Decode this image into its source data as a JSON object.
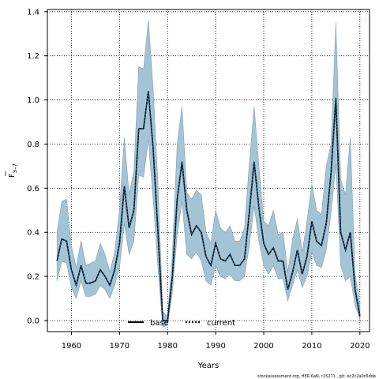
{
  "chart_data": {
    "type": "line",
    "xlabel": "Years",
    "ylabel_main": "F",
    "ylabel_sub": "3–7",
    "xlim": [
      1955,
      2022
    ],
    "ylim": [
      -0.05,
      1.41
    ],
    "x_ticks": [
      1960,
      1970,
      1980,
      1990,
      2000,
      2010,
      2020
    ],
    "y_ticks": [
      0.0,
      0.2,
      0.4,
      0.6,
      0.8,
      1.0,
      1.2,
      1.4
    ],
    "x_tick_labels": [
      "1960",
      "1970",
      "1980",
      "1990",
      "2000",
      "2010",
      "2020"
    ],
    "y_tick_labels": [
      "0.0",
      "0.2",
      "0.4",
      "0.6",
      "0.8",
      "1.0",
      "1.2",
      "1.4"
    ],
    "grid": true,
    "legend_position": "bottom-center",
    "colors": {
      "band_fill": "#a3c4d5",
      "band_stroke": "#7f9fb0",
      "line": "#000000",
      "current_line": "#1f4e79"
    },
    "x": [
      1957,
      1958,
      1959,
      1960,
      1961,
      1962,
      1963,
      1964,
      1965,
      1966,
      1967,
      1968,
      1969,
      1970,
      1971,
      1972,
      1973,
      1974,
      1975,
      1976,
      1977,
      1978,
      1979,
      1980,
      1981,
      1982,
      1983,
      1984,
      1985,
      1986,
      1987,
      1988,
      1989,
      1990,
      1991,
      1992,
      1993,
      1994,
      1995,
      1996,
      1997,
      1998,
      1999,
      2000,
      2001,
      2002,
      2003,
      2004,
      2005,
      2006,
      2007,
      2008,
      2009,
      2010,
      2011,
      2012,
      2013,
      2014,
      2015,
      2016,
      2017,
      2018,
      2019,
      2020
    ],
    "series": [
      {
        "name": "base",
        "style": "solid",
        "values": [
          0.27,
          0.37,
          0.36,
          0.23,
          0.16,
          0.25,
          0.17,
          0.17,
          0.18,
          0.23,
          0.2,
          0.16,
          0.23,
          0.35,
          0.61,
          0.42,
          0.5,
          0.87,
          0.87,
          1.04,
          0.78,
          0.4,
          0.0,
          0.0,
          0.2,
          0.55,
          0.72,
          0.5,
          0.39,
          0.43,
          0.4,
          0.29,
          0.25,
          0.35,
          0.28,
          0.27,
          0.3,
          0.25,
          0.25,
          0.28,
          0.49,
          0.72,
          0.51,
          0.35,
          0.3,
          0.33,
          0.27,
          0.27,
          0.14,
          0.22,
          0.32,
          0.21,
          0.29,
          0.45,
          0.36,
          0.34,
          0.44,
          0.67,
          1.01,
          0.4,
          0.32,
          0.4,
          0.14,
          0.02
        ]
      },
      {
        "name": "current",
        "style": "dotted",
        "values": [
          0.27,
          0.37,
          0.36,
          0.23,
          0.16,
          0.25,
          0.17,
          0.17,
          0.18,
          0.23,
          0.2,
          0.16,
          0.23,
          0.35,
          0.61,
          0.42,
          0.5,
          0.87,
          0.87,
          1.04,
          0.78,
          0.4,
          0.0,
          0.0,
          0.2,
          0.55,
          0.72,
          0.5,
          0.39,
          0.43,
          0.4,
          0.29,
          0.25,
          0.35,
          0.28,
          0.27,
          0.3,
          0.25,
          0.25,
          0.28,
          0.49,
          0.72,
          0.51,
          0.35,
          0.3,
          0.33,
          0.27,
          0.27,
          0.14,
          0.22,
          0.32,
          0.21,
          0.29,
          0.45,
          0.36,
          0.34,
          0.44,
          0.67,
          1.01,
          0.4,
          0.32,
          0.4,
          0.14,
          0.02
        ]
      }
    ],
    "band_upper": [
      0.4,
      0.54,
      0.55,
      0.34,
      0.24,
      0.36,
      0.25,
      0.26,
      0.27,
      0.35,
      0.3,
      0.22,
      0.31,
      0.5,
      0.83,
      0.57,
      0.68,
      1.15,
      1.14,
      1.36,
      1.05,
      0.62,
      0.04,
      0.02,
      0.3,
      0.8,
      0.97,
      0.58,
      0.55,
      0.59,
      0.57,
      0.4,
      0.35,
      0.5,
      0.42,
      0.4,
      0.43,
      0.36,
      0.36,
      0.42,
      0.71,
      0.97,
      0.7,
      0.45,
      0.43,
      0.5,
      0.39,
      0.4,
      0.22,
      0.37,
      0.46,
      0.31,
      0.45,
      0.62,
      0.5,
      0.48,
      0.7,
      0.8,
      1.35,
      0.64,
      0.57,
      0.83,
      0.21,
      0.07
    ],
    "band_lower": [
      0.18,
      0.27,
      0.26,
      0.15,
      0.1,
      0.18,
      0.11,
      0.11,
      0.12,
      0.16,
      0.14,
      0.1,
      0.16,
      0.24,
      0.44,
      0.3,
      0.36,
      0.66,
      0.65,
      0.82,
      0.55,
      0.24,
      -0.03,
      -0.02,
      0.13,
      0.39,
      0.54,
      0.3,
      0.28,
      0.31,
      0.27,
      0.18,
      0.16,
      0.25,
      0.2,
      0.19,
      0.21,
      0.18,
      0.18,
      0.2,
      0.34,
      0.52,
      0.36,
      0.25,
      0.21,
      0.25,
      0.19,
      0.19,
      0.09,
      0.16,
      0.23,
      0.15,
      0.2,
      0.31,
      0.25,
      0.24,
      0.32,
      0.49,
      0.71,
      0.25,
      0.18,
      0.2,
      0.07,
      0.005
    ]
  },
  "legend": {
    "base_label": "base",
    "current_label": "current"
  },
  "footer": {
    "text": "stockassessment.org, HER 6aN, r15271 , git: ec2c2a0c6dde"
  }
}
